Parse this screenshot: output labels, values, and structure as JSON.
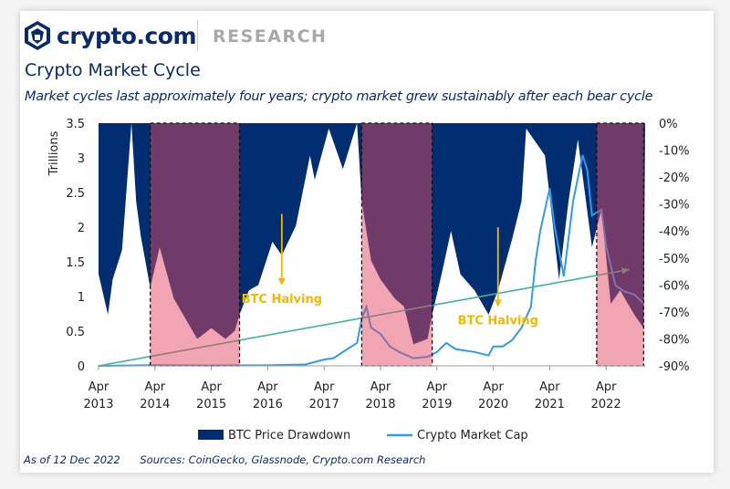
{
  "header": {
    "brand": "crypto.com",
    "section": "RESEARCH"
  },
  "title": "Crypto Market Cycle",
  "subtitle": "Market cycles last approximately four years; crypto market grew sustainably after each bear cycle",
  "footer": {
    "as_of": "As of 12 Dec 2022",
    "sources": "Sources: CoinGecko, Glassnode, Crypto.com Research"
  },
  "colors": {
    "drawdown": "#022d70",
    "market_cap": "#2e9bef",
    "trend": "#3cb39a",
    "halving": "#f5b700",
    "bear_shading": "rgba(226,72,98,0.49)",
    "text": "#0b2a6b"
  },
  "chart_data": {
    "type": "area+line",
    "ylabel": "Trillions",
    "ylim": [
      0,
      3.5
    ],
    "y_ticks": [
      "0",
      "0.5",
      "1",
      "1.5",
      "2",
      "2.5",
      "3",
      "3.5"
    ],
    "y2lim": [
      -90,
      0
    ],
    "y2_ticks": [
      "0%",
      "-10%",
      "-20%",
      "-30%",
      "-40%",
      "-50%",
      "-60%",
      "-70%",
      "-80%",
      "-90%"
    ],
    "x_ticks": [
      {
        "date": "2013-04",
        "label": [
          "Apr",
          "2013"
        ]
      },
      {
        "date": "2014-04",
        "label": [
          "Apr",
          "2014"
        ]
      },
      {
        "date": "2015-04",
        "label": [
          "Apr",
          "2015"
        ]
      },
      {
        "date": "2016-04",
        "label": [
          "Apr",
          "2016"
        ]
      },
      {
        "date": "2017-04",
        "label": [
          "Apr",
          "2017"
        ]
      },
      {
        "date": "2018-04",
        "label": [
          "Apr",
          "2018"
        ]
      },
      {
        "date": "2019-04",
        "label": [
          "Apr",
          "2019"
        ]
      },
      {
        "date": "2020-04",
        "label": [
          "Apr",
          "2020"
        ]
      },
      {
        "date": "2021-04",
        "label": [
          "Apr",
          "2021"
        ]
      },
      {
        "date": "2022-04",
        "label": [
          "Apr",
          "2022"
        ]
      }
    ],
    "x_range": [
      "2013-04",
      "2022-12"
    ],
    "grid": false,
    "legend_position": "bottom",
    "series": [
      {
        "name": "BTC Price Drawdown",
        "type": "area",
        "axis": "right",
        "unit": "%",
        "points": [
          [
            "2013-04",
            -56
          ],
          [
            "2013-06",
            -71
          ],
          [
            "2013-07",
            -58
          ],
          [
            "2013-09",
            -47
          ],
          [
            "2013-11",
            0
          ],
          [
            "2013-12",
            -29
          ],
          [
            "2014-01",
            -42
          ],
          [
            "2014-03",
            -61
          ],
          [
            "2014-05",
            -46
          ],
          [
            "2014-08",
            -65
          ],
          [
            "2014-11",
            -74
          ],
          [
            "2015-01",
            -80
          ],
          [
            "2015-04",
            -76
          ],
          [
            "2015-07",
            -80
          ],
          [
            "2015-09",
            -77
          ],
          [
            "2015-10",
            -71
          ],
          [
            "2015-12",
            -62
          ],
          [
            "2016-02",
            -60
          ],
          [
            "2016-05",
            -44
          ],
          [
            "2016-07",
            -49
          ],
          [
            "2016-10",
            -38
          ],
          [
            "2017-01",
            -12
          ],
          [
            "2017-02",
            -21
          ],
          [
            "2017-05",
            -2
          ],
          [
            "2017-08",
            -17
          ],
          [
            "2017-11",
            0
          ],
          [
            "2017-12",
            -29
          ],
          [
            "2018-02",
            -51
          ],
          [
            "2018-04",
            -58
          ],
          [
            "2018-07",
            -65
          ],
          [
            "2018-09",
            -68
          ],
          [
            "2018-11",
            -82
          ],
          [
            "2019-02",
            -80
          ],
          [
            "2019-03",
            -71
          ],
          [
            "2019-05",
            -56
          ],
          [
            "2019-07",
            -40
          ],
          [
            "2019-09",
            -56
          ],
          [
            "2019-12",
            -62
          ],
          [
            "2020-03",
            -71
          ],
          [
            "2020-05",
            -62
          ],
          [
            "2020-08",
            -43
          ],
          [
            "2020-10",
            -29
          ],
          [
            "2020-11",
            -2
          ],
          [
            "2021-03",
            -12
          ],
          [
            "2021-06",
            -58
          ],
          [
            "2021-08",
            -29
          ],
          [
            "2021-10",
            -6
          ],
          [
            "2022-01",
            -46
          ],
          [
            "2022-03",
            -32
          ],
          [
            "2022-05",
            -67
          ],
          [
            "2022-07",
            -62
          ],
          [
            "2022-10",
            -71
          ],
          [
            "2022-12",
            -76
          ]
        ]
      },
      {
        "name": "Crypto Market Cap",
        "type": "line",
        "axis": "left",
        "unit": "trillions",
        "points": [
          [
            "2013-04",
            0.0
          ],
          [
            "2014-04",
            0.01
          ],
          [
            "2015-04",
            0.005
          ],
          [
            "2016-04",
            0.008
          ],
          [
            "2016-12",
            0.02
          ],
          [
            "2017-04",
            0.09
          ],
          [
            "2017-06",
            0.11
          ],
          [
            "2017-08",
            0.2
          ],
          [
            "2017-11",
            0.33
          ],
          [
            "2017-12",
            0.68
          ],
          [
            "2018-01",
            0.85
          ],
          [
            "2018-02",
            0.55
          ],
          [
            "2018-04",
            0.46
          ],
          [
            "2018-06",
            0.28
          ],
          [
            "2018-08",
            0.2
          ],
          [
            "2018-11",
            0.11
          ],
          [
            "2019-02",
            0.13
          ],
          [
            "2019-04",
            0.2
          ],
          [
            "2019-06",
            0.33
          ],
          [
            "2019-08",
            0.24
          ],
          [
            "2019-12",
            0.2
          ],
          [
            "2020-03",
            0.15
          ],
          [
            "2020-04",
            0.28
          ],
          [
            "2020-06",
            0.28
          ],
          [
            "2020-08",
            0.37
          ],
          [
            "2020-10",
            0.55
          ],
          [
            "2020-12",
            0.85
          ],
          [
            "2021-01",
            1.51
          ],
          [
            "2021-02",
            1.95
          ],
          [
            "2021-04",
            2.56
          ],
          [
            "2021-05",
            2.03
          ],
          [
            "2021-07",
            1.29
          ],
          [
            "2021-09",
            2.38
          ],
          [
            "2021-11",
            3.04
          ],
          [
            "2021-12",
            2.82
          ],
          [
            "2022-01",
            2.17
          ],
          [
            "2022-03",
            2.25
          ],
          [
            "2022-04",
            1.73
          ],
          [
            "2022-06",
            1.16
          ],
          [
            "2022-08",
            1.07
          ],
          [
            "2022-10",
            1.03
          ],
          [
            "2022-12",
            0.9
          ]
        ]
      }
    ],
    "trend_line": {
      "from": [
        "2013-04",
        0
      ],
      "to": [
        "2022-09",
        1.39
      ]
    },
    "bear_periods": [
      [
        "2014-03",
        "2015-10"
      ],
      [
        "2017-12",
        "2019-03"
      ],
      [
        "2022-02",
        "2022-12"
      ]
    ],
    "annotations": [
      {
        "text": "BTC Halving",
        "date": "2016-07",
        "arrow_from": 2.19,
        "arrow_to": 1.16
      },
      {
        "text": "BTC Halving",
        "date": "2020-05",
        "arrow_from": 2.0,
        "arrow_to": 0.85
      }
    ]
  }
}
